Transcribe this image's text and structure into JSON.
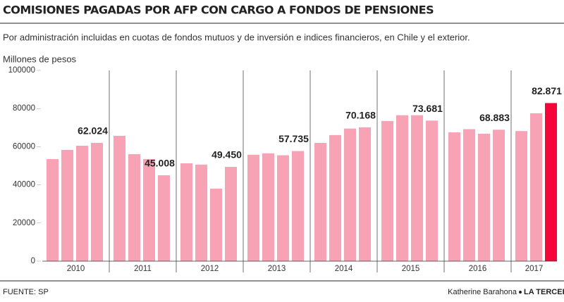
{
  "chart_data": {
    "type": "grouped-bar",
    "title": "COMISIONES PAGADAS POR AFP CON CARGO A FONDOS DE PENSIONES",
    "subtitle": "Por administración incluidas en cuotas de fondos mutuos y  de inversión  e indices financieros,  en Chile y el exterior.",
    "y_axis_label": "Millones de pesos",
    "source": "FUENTE: SP",
    "byline": "Katherine Barahona",
    "brand": "LA TERCERA",
    "color": "#f8a2b6",
    "ylim": [
      0,
      100000
    ],
    "yticks": [
      0,
      20000,
      40000,
      60000,
      80000,
      100000
    ],
    "groups": [
      {
        "label": "2010",
        "values": [
          53500,
          58300,
          60500,
          62024
        ],
        "value_labels": [
          null,
          null,
          null,
          "62.024"
        ]
      },
      {
        "label": "2011",
        "values": [
          65700,
          56100,
          53500,
          45008
        ],
        "value_labels": [
          null,
          null,
          null,
          "45.008"
        ]
      },
      {
        "label": "2012",
        "values": [
          51300,
          50600,
          38000,
          49450
        ],
        "value_labels": [
          null,
          null,
          null,
          "49.450"
        ]
      },
      {
        "label": "2013",
        "values": [
          55800,
          56500,
          55500,
          57735
        ],
        "value_labels": [
          null,
          null,
          null,
          "57.735"
        ]
      },
      {
        "label": "2014",
        "values": [
          62000,
          66100,
          69500,
          70168
        ],
        "value_labels": [
          null,
          null,
          null,
          "70.168"
        ]
      },
      {
        "label": "2015",
        "values": [
          73500,
          76500,
          76500,
          73681
        ],
        "value_labels": [
          null,
          null,
          null,
          "73.681"
        ]
      },
      {
        "label": "2016",
        "values": [
          67500,
          69200,
          66800,
          68883
        ],
        "value_labels": [
          null,
          null,
          null,
          "68.883"
        ]
      },
      {
        "label": "2017",
        "values": [
          68200,
          77500,
          82871
        ],
        "value_labels": [
          null,
          null,
          "82.871"
        ],
        "colors": [
          "#f8a2b6",
          "#f8a2b6",
          "#f5063a"
        ]
      }
    ]
  }
}
